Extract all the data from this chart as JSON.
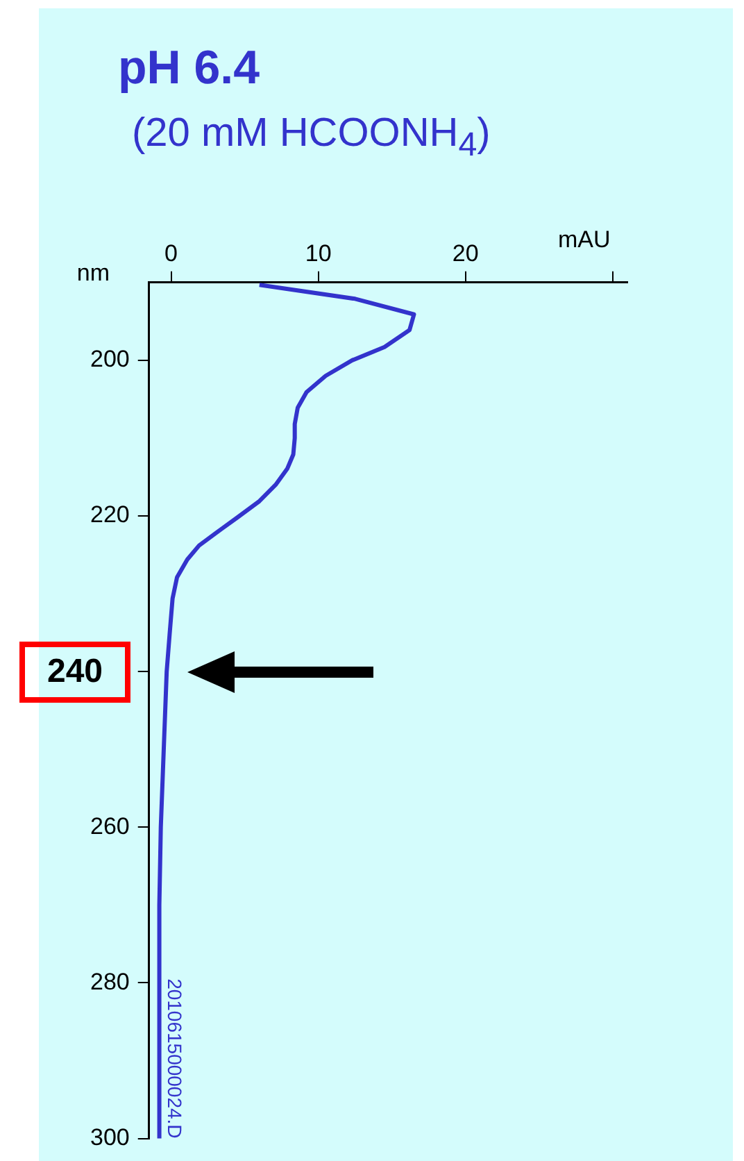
{
  "chart_data": {
    "type": "line",
    "title": "pH 6.4",
    "subtitle": "(20 mM HCOONH$_{4}$)",
    "xlabel": "mAU",
    "ylabel": "nm",
    "series": [
      {
        "color": "#3333cc",
        "x": [
          6.0,
          12.5,
          16.5,
          16.2,
          14.5,
          12.3,
          10.5,
          9.2,
          8.6,
          8.4,
          8.4,
          8.3,
          7.9,
          7.1,
          6.0,
          4.5,
          3.4,
          1.9,
          1.1,
          0.4,
          0.1,
          -0.1,
          -0.3,
          -0.5,
          -0.7,
          -0.8,
          -0.8
        ],
        "values": [
          190.3,
          192.1,
          194.1,
          196.1,
          198.3,
          200,
          202,
          204.1,
          206.1,
          208.2,
          210,
          212.1,
          213.9,
          216,
          218.1,
          220.2,
          221.7,
          223.8,
          225.6,
          227.9,
          230.6,
          235.2,
          240,
          250,
          260,
          270,
          300
        ]
      }
    ],
    "xlim": [
      -1.5,
      31
    ],
    "xticks": [
      0,
      10,
      20,
      {
        "value": 30,
        "label": null
      }
    ],
    "ylim": [
      300,
      190
    ],
    "yticks": [
      200,
      220,
      {
        "value": 240,
        "label": null
      },
      260,
      280,
      300
    ],
    "grid": false,
    "legend": false,
    "marker": "none",
    "line_style": "solid",
    "annotations": [
      "240",
      "2010615000024.D"
    ]
  }
}
